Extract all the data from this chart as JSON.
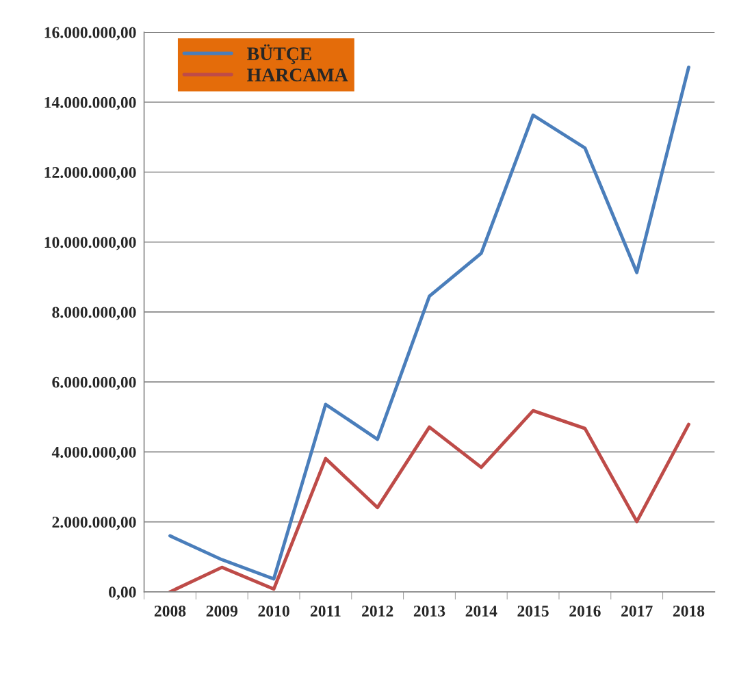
{
  "chart_data": {
    "type": "line",
    "categories": [
      "2008",
      "2009",
      "2010",
      "2011",
      "2012",
      "2013",
      "2014",
      "2015",
      "2016",
      "2017",
      "2018"
    ],
    "series": [
      {
        "name": "BÜTÇE",
        "color": "#4a7ebb",
        "values": [
          1600000,
          920000,
          370000,
          5360000,
          4360000,
          8450000,
          9680000,
          13630000,
          12690000,
          9130000,
          15000000
        ]
      },
      {
        "name": "HARCAMA",
        "color": "#be4b48",
        "values": [
          0,
          700000,
          80000,
          3810000,
          2410000,
          4710000,
          3560000,
          5180000,
          4670000,
          2010000,
          4790000
        ]
      }
    ],
    "ylim": [
      0,
      16000000
    ],
    "yticks": [
      {
        "value": 0,
        "label": "0,00"
      },
      {
        "value": 2000000,
        "label": "2.000.000,00"
      },
      {
        "value": 4000000,
        "label": "4.000.000,00"
      },
      {
        "value": 6000000,
        "label": "6.000.000,00"
      },
      {
        "value": 8000000,
        "label": "8.000.000,00"
      },
      {
        "value": 10000000,
        "label": "10.000.000,00"
      },
      {
        "value": 12000000,
        "label": "12.000.000,00"
      },
      {
        "value": 14000000,
        "label": "14.000.000,00"
      },
      {
        "value": 16000000,
        "label": "16.000.000,00"
      }
    ],
    "grid": "y",
    "legend": "top left",
    "marker": "none",
    "line_style": "solid"
  }
}
